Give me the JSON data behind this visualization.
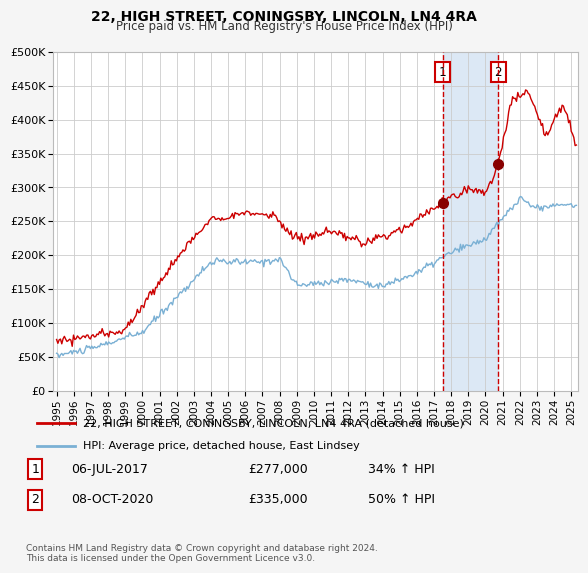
{
  "title": "22, HIGH STREET, CONINGSBY, LINCOLN, LN4 4RA",
  "subtitle": "Price paid vs. HM Land Registry's House Price Index (HPI)",
  "ylabel_ticks": [
    "£0",
    "£50K",
    "£100K",
    "£150K",
    "£200K",
    "£250K",
    "£300K",
    "£350K",
    "£400K",
    "£450K",
    "£500K"
  ],
  "ytick_values": [
    0,
    50000,
    100000,
    150000,
    200000,
    250000,
    300000,
    350000,
    400000,
    450000,
    500000
  ],
  "ylim": [
    0,
    500000
  ],
  "xlim_start": 1994.8,
  "xlim_end": 2025.4,
  "x_tick_labels": [
    "1995",
    "1996",
    "1997",
    "1998",
    "1999",
    "2000",
    "2001",
    "2002",
    "2003",
    "2004",
    "2005",
    "2006",
    "2007",
    "2008",
    "2009",
    "2010",
    "2011",
    "2012",
    "2013",
    "2014",
    "2015",
    "2016",
    "2017",
    "2018",
    "2019",
    "2020",
    "2021",
    "2022",
    "2023",
    "2024",
    "2025"
  ],
  "legend_line1": "22, HIGH STREET, CONINGSBY, LINCOLN, LN4 4RA (detached house)",
  "legend_line2": "HPI: Average price, detached house, East Lindsey",
  "legend_color1": "#cc0000",
  "legend_color2": "#7ab0d4",
  "sale1_label": "1",
  "sale1_date": "06-JUL-2017",
  "sale1_price": "£277,000",
  "sale1_pct": "34% ↑ HPI",
  "sale1_x": 2017.5,
  "sale1_y": 277000,
  "sale2_label": "2",
  "sale2_date": "08-OCT-2020",
  "sale2_price": "£335,000",
  "sale2_pct": "50% ↑ HPI",
  "sale2_x": 2020.75,
  "sale2_y": 335000,
  "vline1_x": 2017.5,
  "vline2_x": 2020.75,
  "footer": "Contains HM Land Registry data © Crown copyright and database right 2024.\nThis data is licensed under the Open Government Licence v3.0.",
  "bg_color": "#f5f5f5",
  "plot_bg": "#ffffff",
  "grid_color": "#cccccc",
  "shade_color": "#dce8f5"
}
